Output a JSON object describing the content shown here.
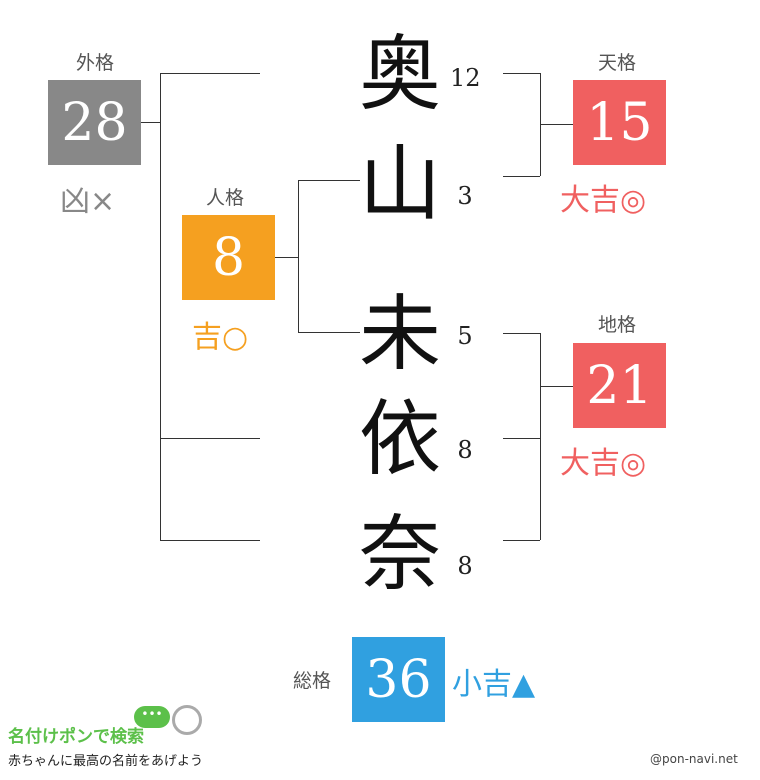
{
  "name_chars": [
    {
      "char": "奥",
      "strokes": "12"
    },
    {
      "char": "山",
      "strokes": "3"
    },
    {
      "char": "未",
      "strokes": "5"
    },
    {
      "char": "依",
      "strokes": "8"
    },
    {
      "char": "奈",
      "strokes": "8"
    }
  ],
  "gaikaku": {
    "label": "外格",
    "value": "28",
    "fortune": "凶×",
    "color": "#888888"
  },
  "jinkaku": {
    "label": "人格",
    "value": "8",
    "fortune": "吉○",
    "color": "#f5a020"
  },
  "tenkaku": {
    "label": "天格",
    "value": "15",
    "fortune": "大吉◎",
    "color": "#f06060"
  },
  "chikaku": {
    "label": "地格",
    "value": "21",
    "fortune": "大吉◎",
    "color": "#f06060"
  },
  "soukaku": {
    "label": "総格",
    "value": "36",
    "fortune": "小吉▲",
    "color": "#30a0e0"
  },
  "footer": {
    "logo": "名付けポンで検索",
    "tagline": "赤ちゃんに最高の名前をあげよう",
    "site": "@pon-navi.net"
  }
}
